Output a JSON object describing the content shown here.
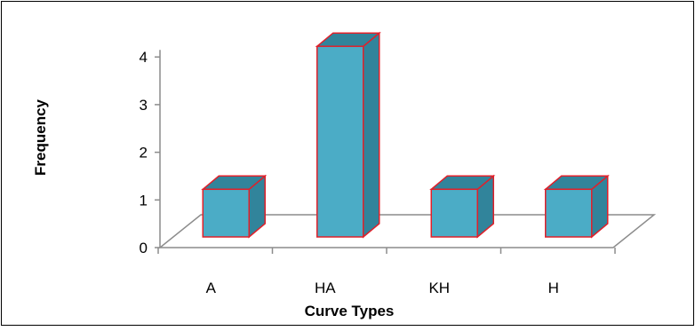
{
  "chart_data": {
    "type": "bar",
    "categories": [
      "A",
      "HA",
      "KH",
      "H"
    ],
    "values": [
      1,
      4,
      1,
      1
    ],
    "title": "",
    "xlabel": "Curve Types",
    "ylabel": "Frequency",
    "ylim": [
      0,
      4
    ],
    "yticks": [
      "0",
      "1",
      "2",
      "3",
      "4"
    ],
    "grid": false,
    "legend": "none",
    "bar_face_color": "#4bacc6",
    "bar_side_color": "#31849b",
    "bar_top_color": "#31849b",
    "bar_edge_color": "#e0202a",
    "floor_color": "#ffffff",
    "axis_color": "#8c8c8c"
  }
}
